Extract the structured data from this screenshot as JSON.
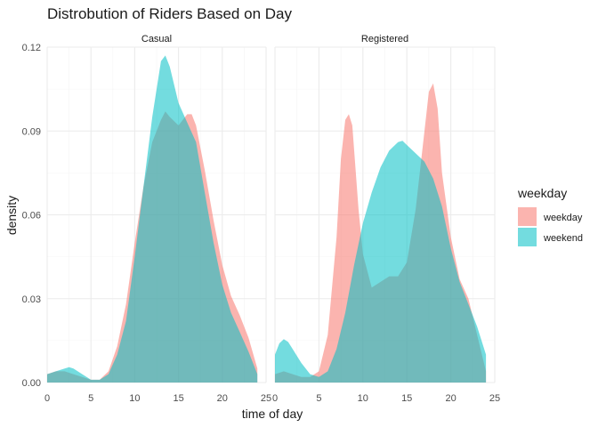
{
  "chart_data": {
    "type": "area",
    "title": "Distrobution of Riders Based on Day",
    "xlabel": "time of day",
    "ylabel": "density",
    "xlim": [
      0,
      25
    ],
    "ylim": [
      0,
      0.12
    ],
    "x_ticks": [
      0,
      5,
      10,
      15,
      20,
      25
    ],
    "y_ticks": [
      0.0,
      0.03,
      0.06,
      0.09,
      0.12
    ],
    "y_tick_labels": [
      "0.00",
      "0.03",
      "0.06",
      "0.09",
      "0.12"
    ],
    "grid": true,
    "legend": {
      "title": "weekday",
      "placement": "right",
      "entries": [
        {
          "label": "weekday",
          "color": "#f8766d"
        },
        {
          "label": "weekend",
          "color": "#00bfc4"
        }
      ]
    },
    "facets": [
      {
        "label": "Casual",
        "series": [
          {
            "name": "weekday",
            "color": "#f8766d",
            "points": [
              [
                0,
                0.003
              ],
              [
                1,
                0.004
              ],
              [
                2,
                0.004
              ],
              [
                3,
                0.003
              ],
              [
                4,
                0.002
              ],
              [
                5,
                0.001
              ],
              [
                6,
                0.001
              ],
              [
                7,
                0.004
              ],
              [
                8,
                0.013
              ],
              [
                9,
                0.028
              ],
              [
                10,
                0.05
              ],
              [
                11,
                0.07
              ],
              [
                12,
                0.086
              ],
              [
                13,
                0.094
              ],
              [
                13.5,
                0.097
              ],
              [
                14,
                0.095
              ],
              [
                15,
                0.092
              ],
              [
                16,
                0.096
              ],
              [
                16.5,
                0.096
              ],
              [
                17,
                0.092
              ],
              [
                18,
                0.076
              ],
              [
                19,
                0.058
              ],
              [
                20,
                0.042
              ],
              [
                21,
                0.031
              ],
              [
                22,
                0.024
              ],
              [
                23,
                0.016
              ],
              [
                24,
                0.005
              ]
            ]
          },
          {
            "name": "weekend",
            "color": "#00bfc4",
            "points": [
              [
                0,
                0.003
              ],
              [
                1,
                0.004
              ],
              [
                2,
                0.005
              ],
              [
                2.5,
                0.0055
              ],
              [
                3,
                0.005
              ],
              [
                4,
                0.003
              ],
              [
                5,
                0.001
              ],
              [
                6,
                0.001
              ],
              [
                7,
                0.003
              ],
              [
                8,
                0.01
              ],
              [
                9,
                0.022
              ],
              [
                10,
                0.045
              ],
              [
                11,
                0.07
              ],
              [
                12,
                0.095
              ],
              [
                13,
                0.115
              ],
              [
                13.5,
                0.117
              ],
              [
                14,
                0.113
              ],
              [
                15,
                0.1
              ],
              [
                16,
                0.093
              ],
              [
                17,
                0.086
              ],
              [
                18,
                0.068
              ],
              [
                19,
                0.05
              ],
              [
                20,
                0.035
              ],
              [
                21,
                0.025
              ],
              [
                22,
                0.018
              ],
              [
                23,
                0.011
              ],
              [
                24,
                0.003
              ]
            ]
          }
        ]
      },
      {
        "label": "Registered",
        "series": [
          {
            "name": "weekday",
            "color": "#f8766d",
            "points": [
              [
                0,
                0.003
              ],
              [
                1,
                0.004
              ],
              [
                2,
                0.003
              ],
              [
                3,
                0.002
              ],
              [
                4,
                0.002
              ],
              [
                5,
                0.004
              ],
              [
                6,
                0.017
              ],
              [
                7,
                0.052
              ],
              [
                7.5,
                0.08
              ],
              [
                8,
                0.094
              ],
              [
                8.4,
                0.096
              ],
              [
                8.8,
                0.092
              ],
              [
                9.5,
                0.062
              ],
              [
                10,
                0.046
              ],
              [
                11,
                0.034
              ],
              [
                12,
                0.036
              ],
              [
                13,
                0.038
              ],
              [
                14,
                0.038
              ],
              [
                15,
                0.043
              ],
              [
                16,
                0.062
              ],
              [
                17,
                0.09
              ],
              [
                17.5,
                0.104
              ],
              [
                18,
                0.107
              ],
              [
                18.5,
                0.098
              ],
              [
                19,
                0.075
              ],
              [
                20,
                0.052
              ],
              [
                21,
                0.037
              ],
              [
                22,
                0.03
              ],
              [
                23,
                0.017
              ],
              [
                24,
                0.004
              ]
            ]
          },
          {
            "name": "weekend",
            "color": "#00bfc4",
            "points": [
              [
                0,
                0.01
              ],
              [
                0.5,
                0.014
              ],
              [
                1,
                0.0155
              ],
              [
                1.5,
                0.0145
              ],
              [
                2,
                0.012
              ],
              [
                3,
                0.007
              ],
              [
                4,
                0.003
              ],
              [
                5,
                0.002
              ],
              [
                6,
                0.004
              ],
              [
                7,
                0.012
              ],
              [
                8,
                0.025
              ],
              [
                9,
                0.042
              ],
              [
                10,
                0.057
              ],
              [
                11,
                0.068
              ],
              [
                12,
                0.077
              ],
              [
                13,
                0.083
              ],
              [
                14,
                0.086
              ],
              [
                14.5,
                0.0865
              ],
              [
                15,
                0.085
              ],
              [
                16,
                0.082
              ],
              [
                17,
                0.079
              ],
              [
                18,
                0.073
              ],
              [
                19,
                0.063
              ],
              [
                20,
                0.048
              ],
              [
                21,
                0.036
              ],
              [
                22,
                0.028
              ],
              [
                23,
                0.02
              ],
              [
                24,
                0.01
              ]
            ]
          }
        ]
      }
    ]
  }
}
